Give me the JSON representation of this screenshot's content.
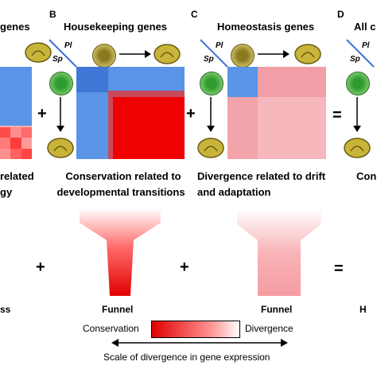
{
  "panels": {
    "a": {
      "letter": "",
      "title": "genes",
      "caption_line1": "related",
      "caption_line2": "gy",
      "funnel_label": "ss"
    },
    "b": {
      "letter": "B",
      "title": "Housekeeping genes",
      "caption_line1": "Conservation related to",
      "caption_line2": "developmental transitions",
      "funnel_label": "Funnel"
    },
    "c": {
      "letter": "C",
      "title": "Homeostasis genes",
      "caption_line1": "Divergence  related to drift",
      "caption_line2": "and adaptation",
      "funnel_label": "Funnel"
    },
    "d": {
      "letter": "D",
      "title": "All c",
      "caption_line1": "Con",
      "funnel_label": "H"
    }
  },
  "axis": {
    "pl": "Pl",
    "sp": "Sp"
  },
  "operators": {
    "plus": "+",
    "equals": "="
  },
  "scale": {
    "left_label": "Conservation",
    "right_label": "Divergence",
    "caption": "Scale of divergence in gene expression",
    "colors": {
      "conservation": "#e00000",
      "divergence": "#ffffff"
    }
  },
  "colors": {
    "blue": "#5a94e6",
    "red": "#f00000",
    "pink": "#f6b0b4",
    "accent_line": "#3b74d8"
  }
}
